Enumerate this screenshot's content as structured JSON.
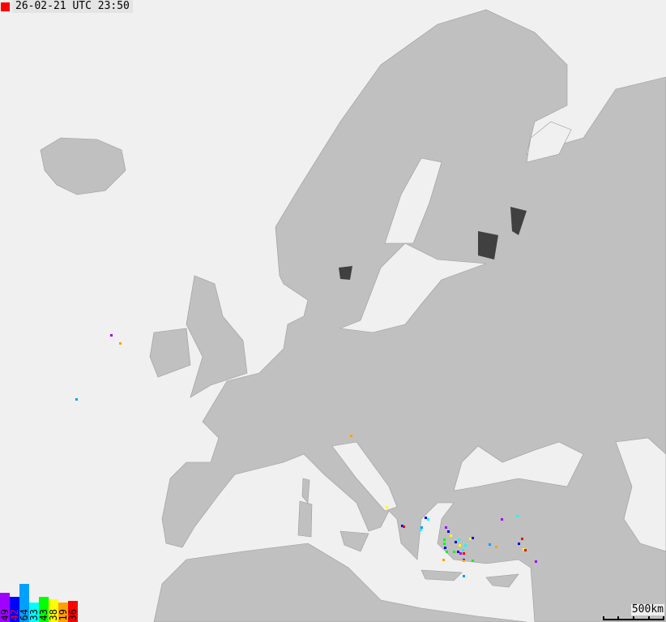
{
  "timestamp": {
    "text": "26-02-21 UTC 23:50",
    "indicator_color": "#ff0000"
  },
  "legend": [
    {
      "count": "49",
      "color": "#a000ff",
      "text_color": "#000000"
    },
    {
      "count": "42",
      "color": "#0000ff",
      "text_color": "#ff0000"
    },
    {
      "count": "64",
      "color": "#00a0ff",
      "text_color": "#000000"
    },
    {
      "count": "33",
      "color": "#00ffff",
      "text_color": "#000000"
    },
    {
      "count": "43",
      "color": "#00ff00",
      "text_color": "#000000"
    },
    {
      "count": "38",
      "color": "#ffff00",
      "text_color": "#000000"
    },
    {
      "count": "19",
      "color": "#ffa000",
      "text_color": "#000000"
    },
    {
      "count": "36",
      "color": "#ff0000",
      "text_color": "#000000"
    }
  ],
  "scale": {
    "label": "500km"
  },
  "colors": {
    "sea": "#f0f0f0",
    "land": "#c0c0c0",
    "lakes": "#404040",
    "borders": "#888888"
  }
}
